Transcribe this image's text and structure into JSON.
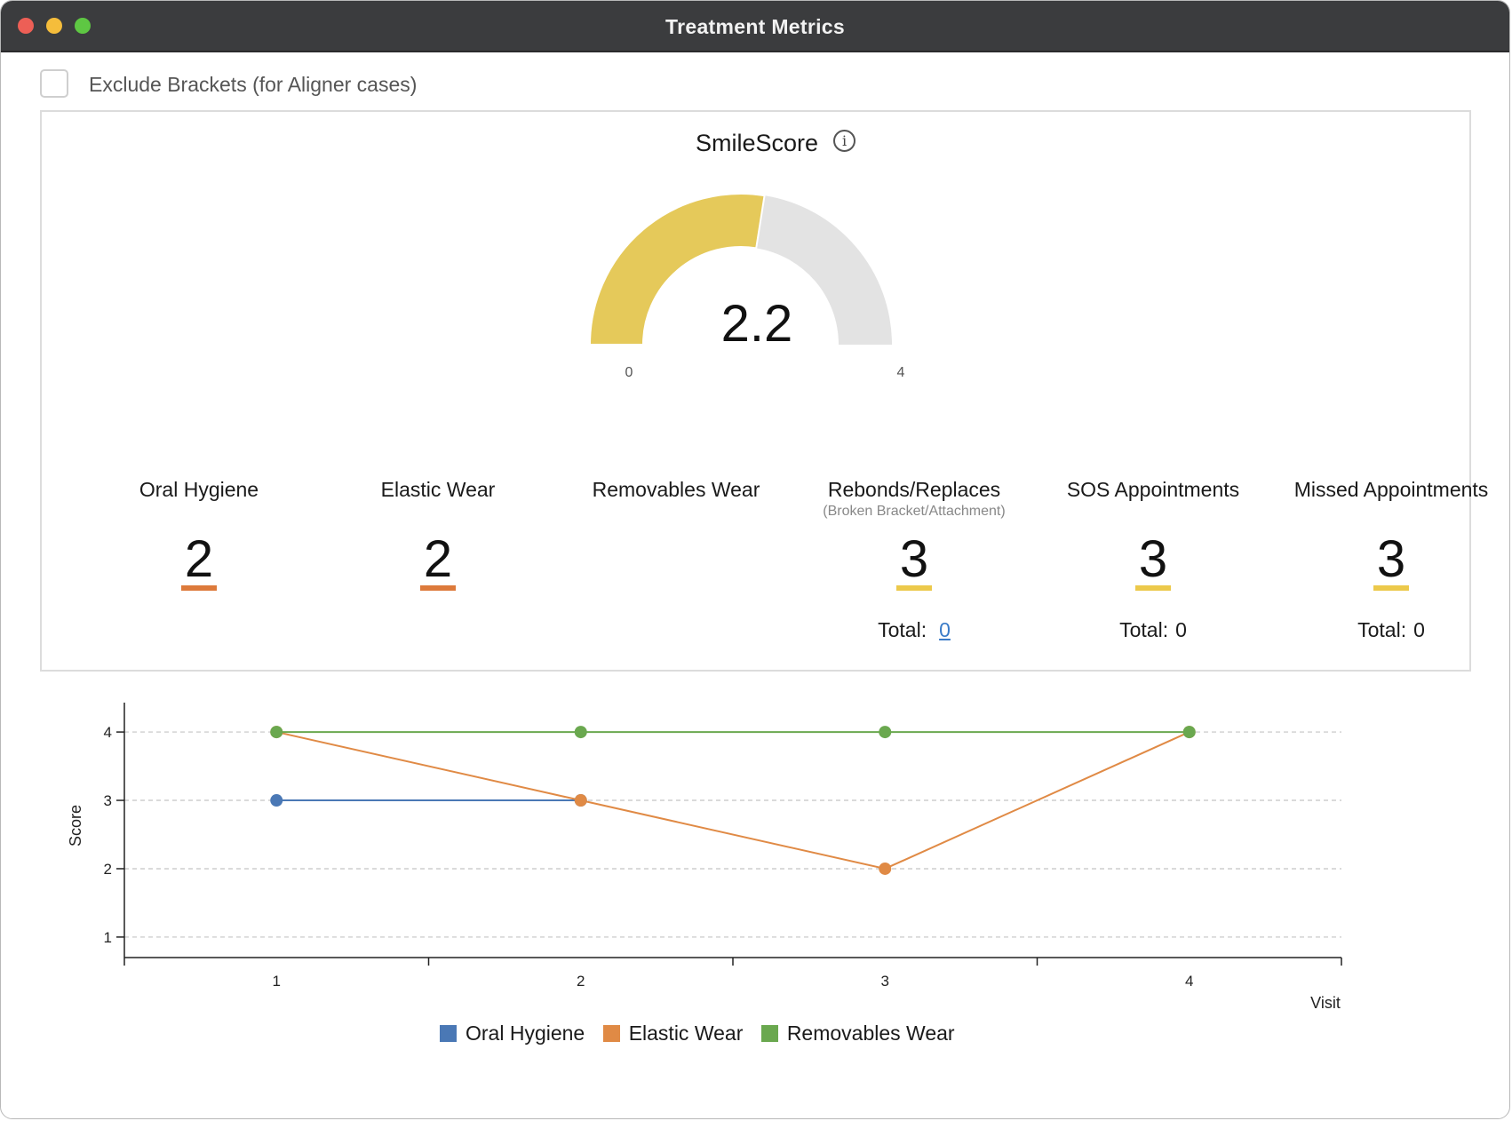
{
  "window": {
    "title": "Treatment Metrics"
  },
  "options": {
    "exclude_brackets_label": "Exclude Brackets (for Aligner cases)",
    "exclude_brackets_checked": false
  },
  "smilescore": {
    "title": "SmileScore",
    "info_glyph": "i",
    "value": "2.2",
    "numeric_value": 2.2,
    "min_label": "0",
    "max_label": "4",
    "min": 0,
    "max": 4,
    "fill_color": "#e5c95a",
    "track_color": "#e3e3e3"
  },
  "metrics": [
    {
      "label": "Oral Hygiene",
      "sub": "",
      "value": "2",
      "underline_color": "#dd7a3b"
    },
    {
      "label": "Elastic Wear",
      "sub": "",
      "value": "2",
      "underline_color": "#dd7a3b"
    },
    {
      "label": "Removables Wear",
      "sub": "",
      "value": "",
      "underline_color": ""
    },
    {
      "label": "Rebonds/Replaces",
      "sub": "(Broken Bracket/Attachment)",
      "value": "3",
      "underline_color": "#ecc94b",
      "total_label": "Total:",
      "total_value": "0",
      "total_is_link": true
    },
    {
      "label": "SOS Appointments",
      "sub": "",
      "value": "3",
      "underline_color": "#ecc94b",
      "total_label": "Total:",
      "total_value": "0",
      "total_is_link": false
    },
    {
      "label": "Missed Appointments",
      "sub": "",
      "value": "3",
      "underline_color": "#ecc94b",
      "total_label": "Total:",
      "total_value": "0",
      "total_is_link": false
    }
  ],
  "chart_data": {
    "type": "line",
    "x": [
      1,
      2,
      3,
      4
    ],
    "x_tick_labels": [
      "1",
      "2",
      "3",
      "4"
    ],
    "y_tick_labels": [
      "1",
      "2",
      "3",
      "4"
    ],
    "xlabel": "Visit",
    "ylabel": "Score",
    "xlim": [
      0.5,
      4.5
    ],
    "ylim": [
      0.7,
      4.3
    ],
    "grid": true,
    "legend_position": "bottom-center",
    "series": [
      {
        "name": "Oral Hygiene",
        "color": "#4a78b5",
        "points": [
          [
            1,
            3
          ],
          [
            2,
            3
          ]
        ]
      },
      {
        "name": "Elastic Wear",
        "color": "#e08a45",
        "points": [
          [
            1,
            4
          ],
          [
            2,
            3
          ],
          [
            3,
            2
          ],
          [
            4,
            4
          ]
        ]
      },
      {
        "name": "Removables Wear",
        "color": "#6aa84f",
        "points": [
          [
            1,
            4
          ],
          [
            2,
            4
          ],
          [
            3,
            4
          ],
          [
            4,
            4
          ]
        ]
      }
    ]
  }
}
